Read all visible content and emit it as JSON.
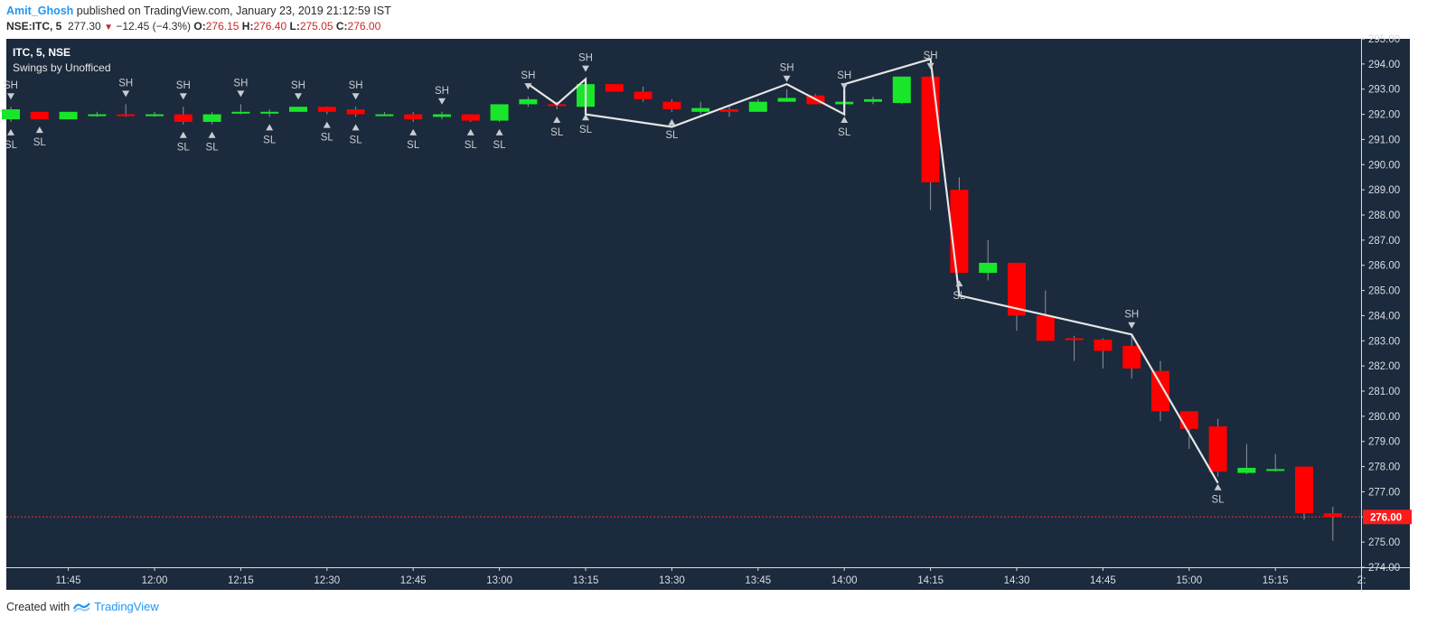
{
  "header": {
    "author": "Amit_Ghosh",
    "published_text": "published on TradingView.com, January 23, 2019 21:12:59 IST",
    "symbol_line": "NSE:ITC, 5",
    "last_price": "277.30",
    "change": "−12.45 (−4.3%)",
    "open_label": "O:",
    "open": "276.15",
    "high_label": "H:",
    "high": "276.40",
    "low_label": "L:",
    "low": "275.05",
    "close_label": "C:",
    "close": "276.00"
  },
  "footer": {
    "created_with": "Created with",
    "brand": "TradingView"
  },
  "colors": {
    "background": "#1b2a3c",
    "up": "#19e62b",
    "down": "#ff0000",
    "swing_line": "#e6e6e6",
    "label": "#c9ccd1",
    "price_line": "#ff2a2a"
  },
  "chart_data": {
    "type": "candlestick",
    "title": "ITC, 5, NSE",
    "subtitle": "Swings by Unofficed",
    "ylim": [
      274.0,
      295.0
    ],
    "y_ticks": [
      "295.00",
      "294.00",
      "293.00",
      "292.00",
      "291.00",
      "290.00",
      "289.00",
      "288.00",
      "287.00",
      "286.00",
      "285.00",
      "284.00",
      "283.00",
      "282.00",
      "281.00",
      "280.00",
      "279.00",
      "278.00",
      "277.00",
      "276.00",
      "275.00",
      "274.00"
    ],
    "x_ticks": [
      "11:45",
      "12:00",
      "12:15",
      "12:30",
      "12:45",
      "13:00",
      "13:15",
      "13:30",
      "13:45",
      "14:00",
      "14:15",
      "14:30",
      "14:45",
      "15:00",
      "15:15",
      "2:"
    ],
    "current_price": "276.00",
    "candles": [
      {
        "o": 291.8,
        "h": 292.3,
        "l": 291.7,
        "c": 292.2
      },
      {
        "o": 292.1,
        "h": 292.1,
        "l": 291.8,
        "c": 291.8
      },
      {
        "o": 291.8,
        "h": 292.1,
        "l": 291.8,
        "c": 292.1
      },
      {
        "o": 292.0,
        "h": 292.1,
        "l": 291.9,
        "c": 292.0
      },
      {
        "o": 292.0,
        "h": 292.4,
        "l": 291.9,
        "c": 291.95
      },
      {
        "o": 292.0,
        "h": 292.1,
        "l": 291.9,
        "c": 292.0
      },
      {
        "o": 292.0,
        "h": 292.3,
        "l": 291.6,
        "c": 291.7
      },
      {
        "o": 291.7,
        "h": 292.1,
        "l": 291.6,
        "c": 292.0
      },
      {
        "o": 292.1,
        "h": 292.4,
        "l": 292.0,
        "c": 292.1
      },
      {
        "o": 292.1,
        "h": 292.2,
        "l": 291.9,
        "c": 292.1
      },
      {
        "o": 292.1,
        "h": 292.3,
        "l": 292.1,
        "c": 292.3
      },
      {
        "o": 292.3,
        "h": 292.3,
        "l": 292.0,
        "c": 292.1
      },
      {
        "o": 292.2,
        "h": 292.3,
        "l": 291.9,
        "c": 292.0
      },
      {
        "o": 292.0,
        "h": 292.1,
        "l": 292.0,
        "c": 292.0
      },
      {
        "o": 292.0,
        "h": 292.1,
        "l": 291.7,
        "c": 291.8
      },
      {
        "o": 291.9,
        "h": 292.1,
        "l": 291.8,
        "c": 292.0
      },
      {
        "o": 292.0,
        "h": 292.0,
        "l": 291.7,
        "c": 291.75
      },
      {
        "o": 291.75,
        "h": 292.4,
        "l": 291.7,
        "c": 292.4
      },
      {
        "o": 292.4,
        "h": 292.7,
        "l": 292.3,
        "c": 292.6
      },
      {
        "o": 292.4,
        "h": 292.5,
        "l": 292.2,
        "c": 292.35
      },
      {
        "o": 292.3,
        "h": 293.4,
        "l": 292.3,
        "c": 293.2
      },
      {
        "o": 293.2,
        "h": 293.2,
        "l": 292.9,
        "c": 292.9
      },
      {
        "o": 292.9,
        "h": 293.1,
        "l": 292.5,
        "c": 292.6
      },
      {
        "o": 292.5,
        "h": 292.6,
        "l": 292.1,
        "c": 292.2
      },
      {
        "o": 292.1,
        "h": 292.5,
        "l": 292.0,
        "c": 292.25
      },
      {
        "o": 292.2,
        "h": 292.3,
        "l": 291.9,
        "c": 292.1
      },
      {
        "o": 292.1,
        "h": 292.6,
        "l": 292.1,
        "c": 292.5
      },
      {
        "o": 292.5,
        "h": 293.0,
        "l": 292.5,
        "c": 292.65
      },
      {
        "o": 292.75,
        "h": 292.8,
        "l": 292.4,
        "c": 292.4
      },
      {
        "o": 292.4,
        "h": 292.7,
        "l": 292.2,
        "c": 292.5
      },
      {
        "o": 292.5,
        "h": 292.7,
        "l": 292.4,
        "c": 292.6
      },
      {
        "o": 292.45,
        "h": 293.5,
        "l": 292.4,
        "c": 293.5
      },
      {
        "o": 293.5,
        "h": 293.5,
        "l": 288.2,
        "c": 289.3
      },
      {
        "o": 289.0,
        "h": 289.5,
        "l": 285.7,
        "c": 285.7
      },
      {
        "o": 285.7,
        "h": 287.0,
        "l": 285.4,
        "c": 286.1
      },
      {
        "o": 286.1,
        "h": 286.1,
        "l": 283.4,
        "c": 284.0
      },
      {
        "o": 284.0,
        "h": 285.0,
        "l": 283.0,
        "c": 283.0
      },
      {
        "o": 283.1,
        "h": 283.2,
        "l": 282.2,
        "c": 283.05
      },
      {
        "o": 283.05,
        "h": 283.1,
        "l": 281.9,
        "c": 282.6
      },
      {
        "o": 282.8,
        "h": 283.2,
        "l": 281.5,
        "c": 281.9
      },
      {
        "o": 281.8,
        "h": 282.2,
        "l": 279.8,
        "c": 280.2
      },
      {
        "o": 280.2,
        "h": 280.2,
        "l": 278.7,
        "c": 279.5
      },
      {
        "o": 279.6,
        "h": 279.9,
        "l": 277.6,
        "c": 277.8
      },
      {
        "o": 277.75,
        "h": 278.9,
        "l": 277.7,
        "c": 277.95
      },
      {
        "o": 277.85,
        "h": 278.5,
        "l": 277.8,
        "c": 277.9
      },
      {
        "o": 278.0,
        "h": 278.0,
        "l": 275.9,
        "c": 276.15
      },
      {
        "o": 276.15,
        "h": 276.4,
        "l": 275.05,
        "c": 276.0
      }
    ],
    "swing_marks": [
      {
        "type": "SH",
        "bar": 0
      },
      {
        "type": "SL",
        "bar": 0
      },
      {
        "type": "SL",
        "bar": 1
      },
      {
        "type": "SH",
        "bar": 4
      },
      {
        "type": "SH",
        "bar": 6
      },
      {
        "type": "SL",
        "bar": 6
      },
      {
        "type": "SL",
        "bar": 7
      },
      {
        "type": "SH",
        "bar": 8
      },
      {
        "type": "SL",
        "bar": 9
      },
      {
        "type": "SH",
        "bar": 10
      },
      {
        "type": "SL",
        "bar": 11
      },
      {
        "type": "SH",
        "bar": 12
      },
      {
        "type": "SL",
        "bar": 12
      },
      {
        "type": "SL",
        "bar": 14
      },
      {
        "type": "SH",
        "bar": 15
      },
      {
        "type": "SL",
        "bar": 16
      },
      {
        "type": "SL",
        "bar": 17
      },
      {
        "type": "SH",
        "bar": 18
      },
      {
        "type": "SL",
        "bar": 19
      },
      {
        "type": "SH",
        "bar": 20
      },
      {
        "type": "SL",
        "bar": 20
      },
      {
        "type": "SL",
        "bar": 23
      },
      {
        "type": "SH",
        "bar": 27
      },
      {
        "type": "SH",
        "bar": 29
      },
      {
        "type": "SL",
        "bar": 29
      },
      {
        "type": "SH",
        "bar": 32
      },
      {
        "type": "SL",
        "bar": 33
      },
      {
        "type": "SH",
        "bar": 39
      },
      {
        "type": "SL",
        "bar": 42
      }
    ],
    "swing_line": [
      {
        "bar": 18,
        "price": 293.2
      },
      {
        "bar": 19,
        "price": 292.4
      },
      {
        "bar": 20,
        "price": 293.4
      },
      {
        "bar": 20,
        "price": 292.0
      },
      {
        "bar": 23,
        "price": 291.5
      },
      {
        "bar": 27,
        "price": 293.2
      },
      {
        "bar": 29,
        "price": 292.0
      },
      {
        "bar": 29,
        "price": 293.2
      },
      {
        "bar": 32,
        "price": 294.2
      },
      {
        "bar": 33,
        "price": 284.8
      },
      {
        "bar": 39,
        "price": 283.25
      },
      {
        "bar": 42,
        "price": 277.35
      }
    ]
  }
}
